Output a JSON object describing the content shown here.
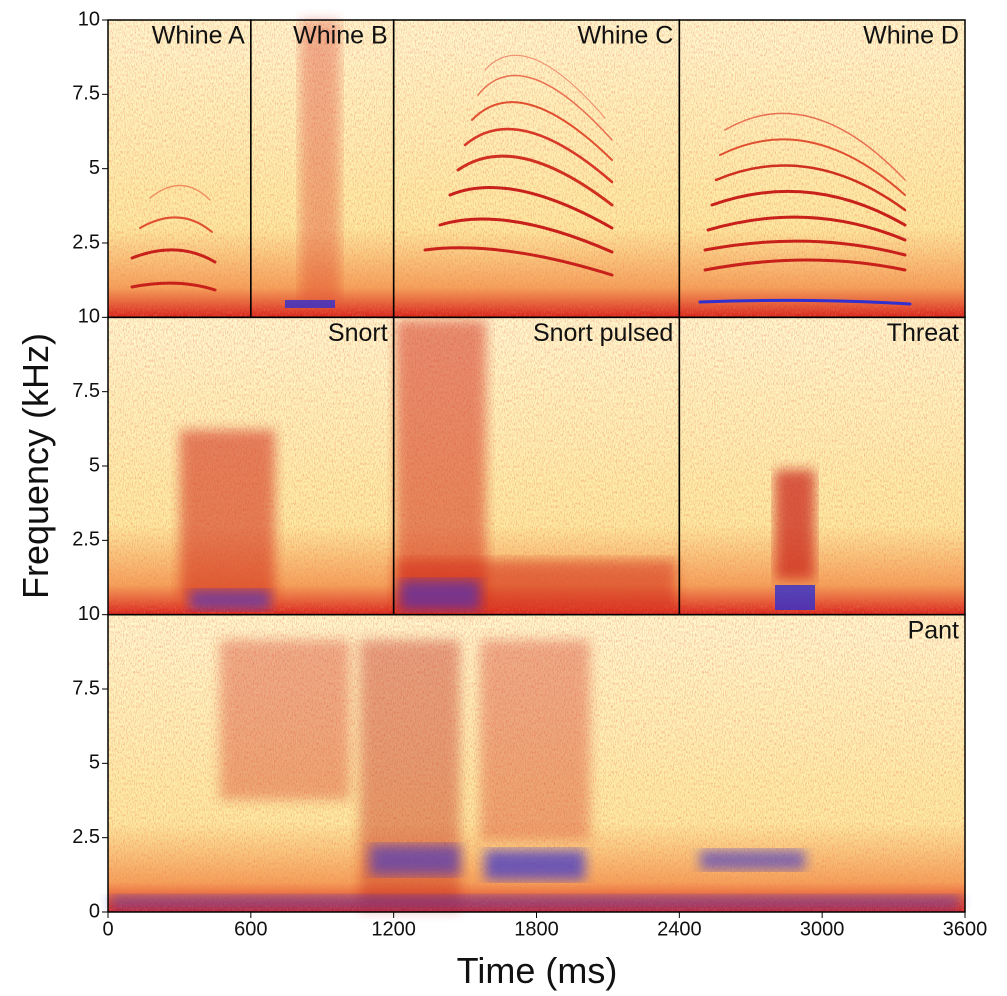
{
  "chart_data": {
    "type": "spectrogram",
    "xlabel": "Time (ms)",
    "ylabel": "Frequency (kHz)",
    "xlim": [
      0,
      3600
    ],
    "xticks": [
      0,
      600,
      1200,
      1800,
      2400,
      3000,
      3600
    ],
    "ylim": [
      0,
      10
    ],
    "yticks": [
      0,
      2.5,
      5,
      7.5,
      10
    ],
    "rows": [
      {
        "panels": [
          {
            "label": "Whine A",
            "xlim": [
              0,
              600
            ]
          },
          {
            "label": "Whine B",
            "xlim": [
              600,
              1200
            ]
          },
          {
            "label": "Whine C",
            "xlim": [
              1200,
              2400
            ]
          },
          {
            "label": "Whine D",
            "xlim": [
              2400,
              3600
            ]
          }
        ]
      },
      {
        "panels": [
          {
            "label": "Snort",
            "xlim": [
              0,
              1200
            ]
          },
          {
            "label": "Snort pulsed",
            "xlim": [
              1200,
              2400
            ]
          },
          {
            "label": "Threat",
            "xlim": [
              2400,
              3600
            ]
          }
        ]
      },
      {
        "panels": [
          {
            "label": "Pant",
            "xlim": [
              0,
              3600
            ]
          }
        ]
      }
    ]
  }
}
